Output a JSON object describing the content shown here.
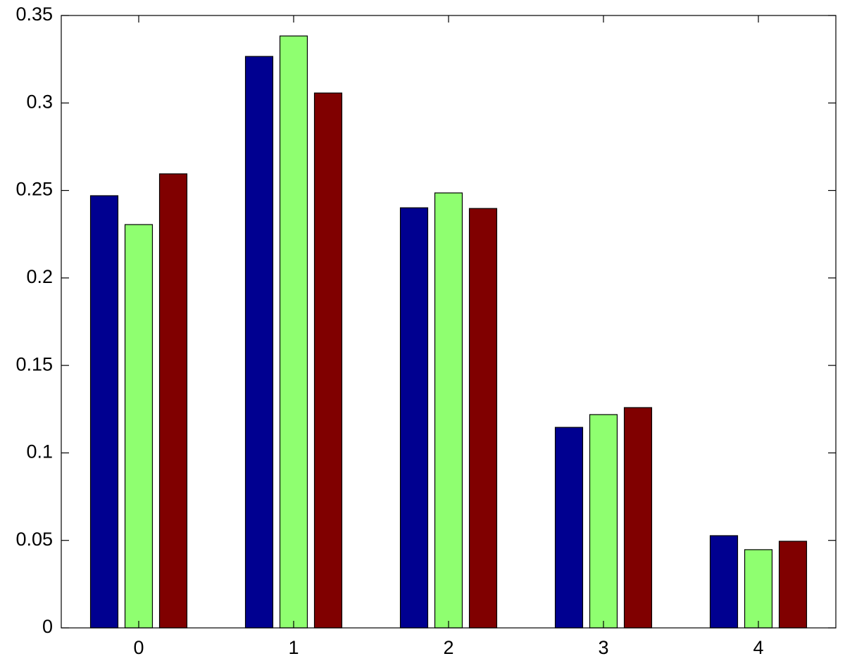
{
  "chart_data": {
    "type": "bar",
    "categories": [
      "0",
      "1",
      "2",
      "3",
      "4"
    ],
    "series": [
      {
        "color": "#000090",
        "values": [
          0.247,
          0.3266,
          0.2401,
          0.1146,
          0.0527
        ]
      },
      {
        "color": "#8fff70",
        "values": [
          0.2305,
          0.3383,
          0.2486,
          0.1219,
          0.0447
        ]
      },
      {
        "color": "#800000",
        "values": [
          0.2595,
          0.3057,
          0.2397,
          0.1259,
          0.0495
        ]
      }
    ],
    "ylim": [
      0,
      0.35
    ],
    "yticks": [
      0,
      0.05,
      0.1,
      0.15,
      0.2,
      0.25,
      0.3,
      0.35
    ],
    "grid": false
  }
}
